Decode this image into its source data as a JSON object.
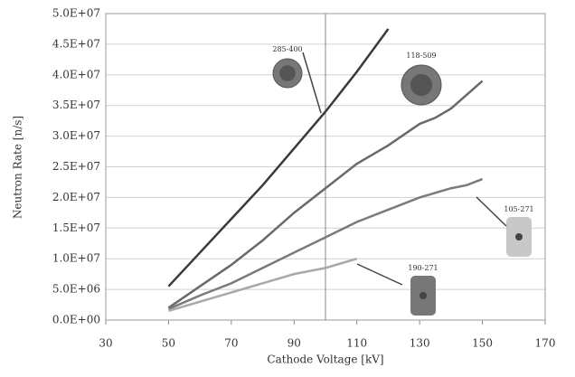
{
  "chart_data": {
    "type": "line",
    "xlabel": "Cathode Voltage [kV]",
    "ylabel": "Neutron Rate [n/s]",
    "xlim": [
      30,
      170
    ],
    "xticks": [
      30,
      50,
      70,
      90,
      110,
      130,
      150,
      170
    ],
    "ylim": [
      0,
      50000000
    ],
    "yticks": [
      {
        "value": 0,
        "label": "0.0E+00"
      },
      {
        "value": 5000000,
        "label": "5.0E+06"
      },
      {
        "value": 10000000,
        "label": "1.0E+07"
      },
      {
        "value": 15000000,
        "label": "1.5E+07"
      },
      {
        "value": 20000000,
        "label": "2.0E+07"
      },
      {
        "value": 25000000,
        "label": "2.5E+07"
      },
      {
        "value": 30000000,
        "label": "3.0E+07"
      },
      {
        "value": 35000000,
        "label": "3.5E+07"
      },
      {
        "value": 40000000,
        "label": "4.0E+07"
      },
      {
        "value": 45000000,
        "label": "4.5E+07"
      },
      {
        "value": 50000000,
        "label": "5.0E+07"
      }
    ],
    "grid": true,
    "vline": 100,
    "series": [
      {
        "color": "#3a3a3a",
        "x": [
          50,
          60,
          70,
          80,
          90,
          100,
          110,
          120
        ],
        "values": [
          5500000,
          11000000,
          16500000,
          22000000,
          28000000,
          34000000,
          40500000,
          47500000
        ]
      },
      {
        "color": "#6a6a6a",
        "x": [
          50,
          60,
          70,
          80,
          90,
          100,
          110,
          120,
          130,
          135,
          140,
          150
        ],
        "values": [
          2000000,
          5500000,
          9000000,
          13000000,
          17500000,
          21500000,
          25500000,
          28500000,
          32000000,
          33000000,
          34500000,
          39000000
        ]
      },
      {
        "color": "#7a7a7a",
        "x": [
          50,
          60,
          70,
          80,
          90,
          100,
          110,
          120,
          130,
          140,
          145,
          150
        ],
        "values": [
          1800000,
          4000000,
          6000000,
          8500000,
          11000000,
          13500000,
          16000000,
          18000000,
          20000000,
          21500000,
          22000000,
          23000000
        ]
      },
      {
        "color": "#a8a8a8",
        "x": [
          50,
          60,
          70,
          80,
          90,
          100,
          110
        ],
        "values": [
          1500000,
          3000000,
          4500000,
          6000000,
          7500000,
          8500000,
          10000000
        ]
      }
    ],
    "annotations": [
      "285-400",
      "118-509",
      "105-271",
      "190-271"
    ]
  }
}
